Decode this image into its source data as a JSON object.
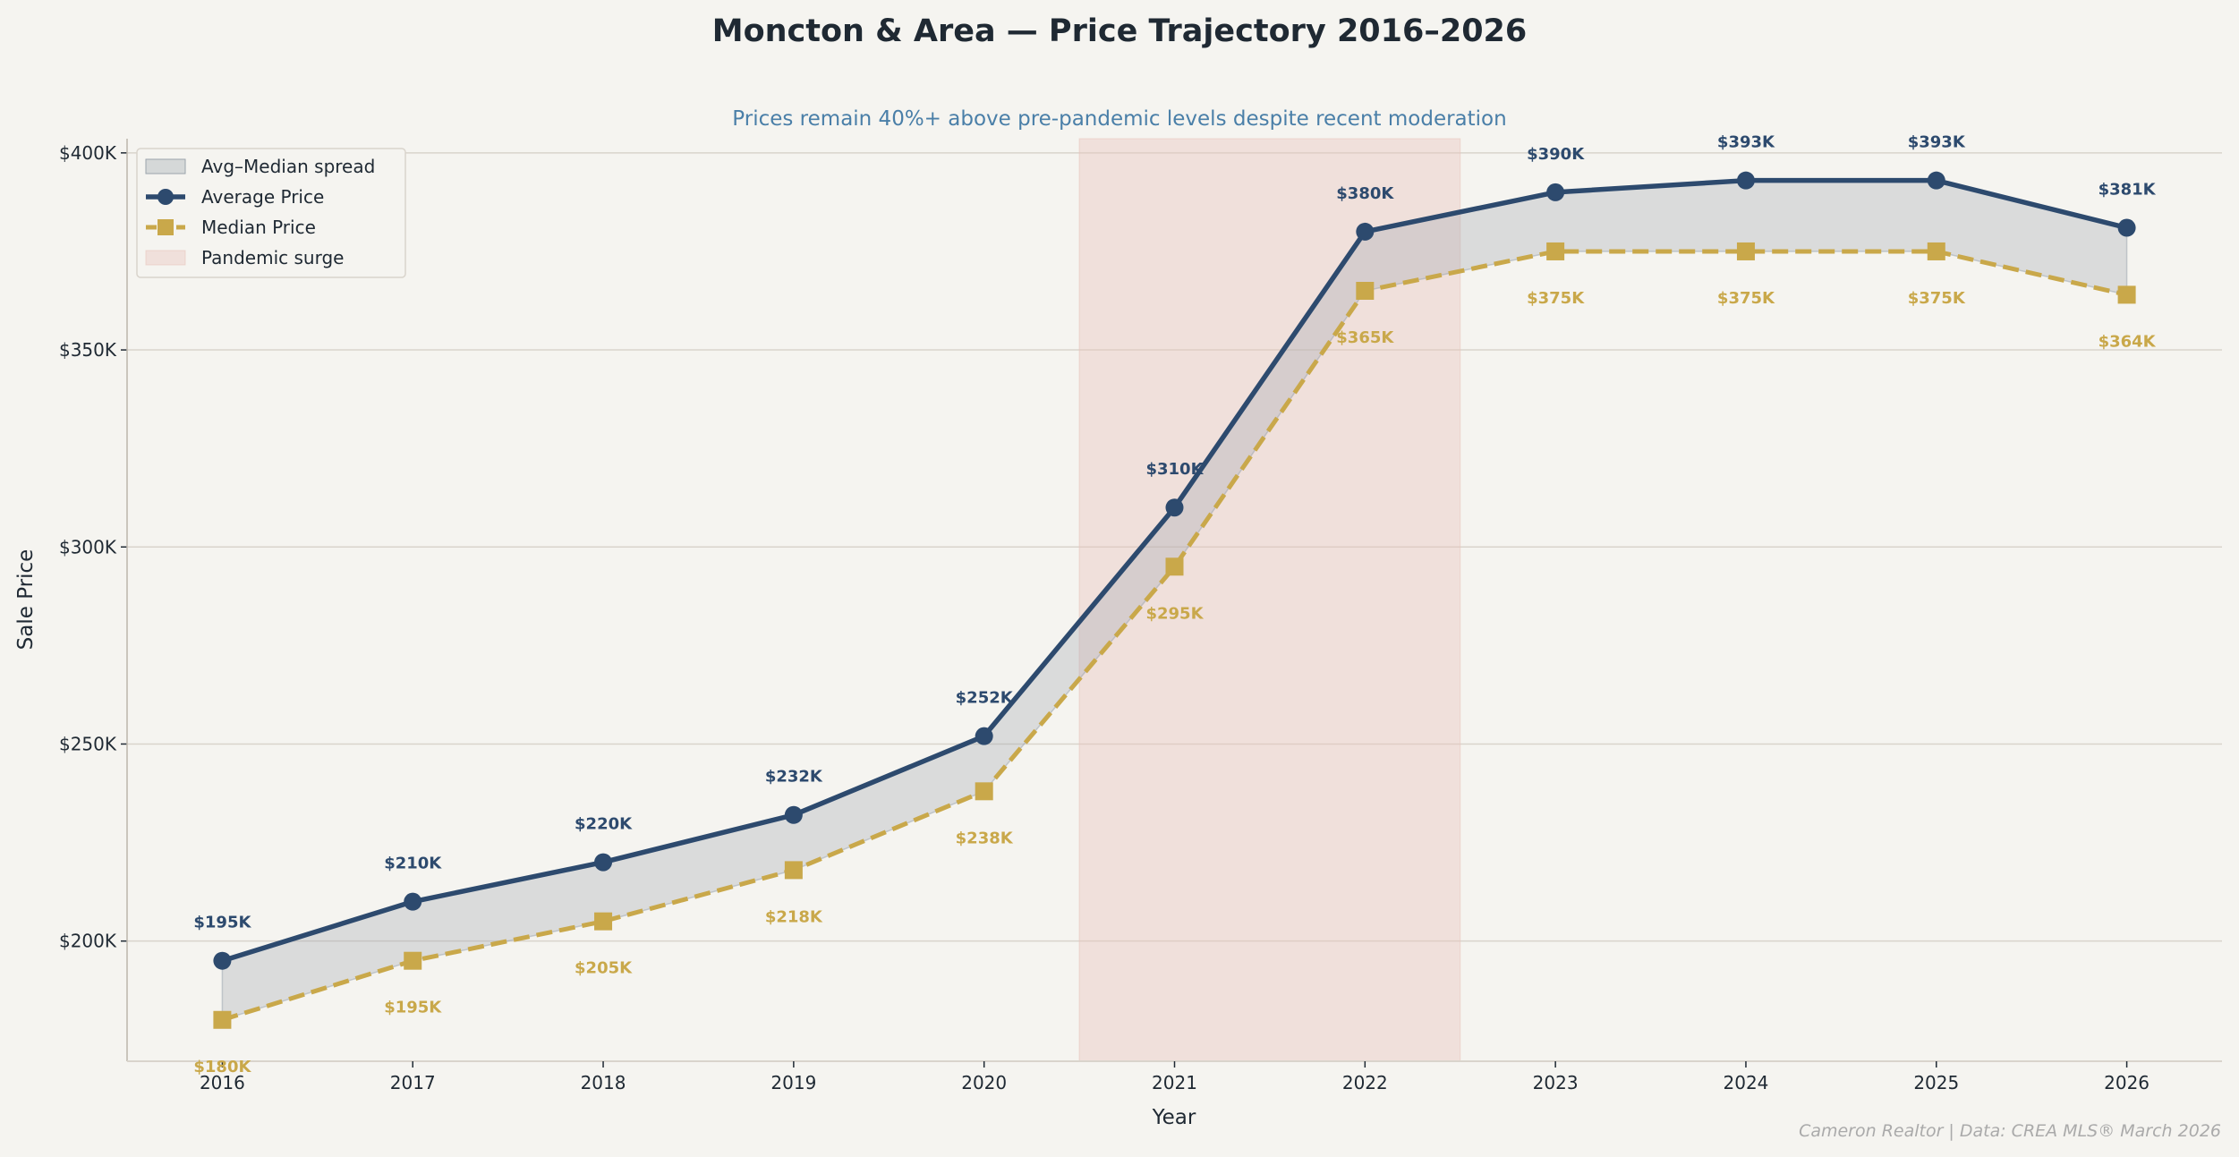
{
  "chart_data": {
    "type": "line",
    "title": "Moncton & Area — Price Trajectory  2016–2026",
    "subtitle": "Prices remain 40%+ above pre-pandemic levels despite recent moderation",
    "xlabel": "Year",
    "ylabel": "Sale Price",
    "footer": "Cameron Realtor  |  Data: CREA MLS® March 2026",
    "x": [
      2016,
      2017,
      2018,
      2019,
      2020,
      2021,
      2022,
      2023,
      2024,
      2025,
      2026
    ],
    "xlim": [
      2015.5,
      2026.5
    ],
    "ylim": [
      169500,
      403600
    ],
    "yticks": [
      200000,
      250000,
      300000,
      350000,
      400000
    ],
    "ytick_labels": [
      "$200K",
      "$250K",
      "$300K",
      "$350K",
      "$400K"
    ],
    "grid": "horizontal",
    "legend_position": "top-left",
    "series": [
      {
        "name": "Average Price",
        "color": "#2d4a6e",
        "style": "solid",
        "marker": "circle",
        "values": [
          195000,
          210000,
          220000,
          232000,
          252000,
          310000,
          380000,
          390000,
          393000,
          393000,
          381000
        ],
        "labels": [
          "$195K",
          "$210K",
          "$220K",
          "$232K",
          "$252K",
          "$310K",
          "$380K",
          "$390K",
          "$393K",
          "$393K",
          "$381K"
        ]
      },
      {
        "name": "Median Price",
        "color": "#c9a84a",
        "style": "dashed",
        "marker": "square",
        "values": [
          180000,
          195000,
          205000,
          218000,
          238000,
          295000,
          365000,
          375000,
          375000,
          375000,
          364000
        ],
        "labels": [
          "$180K",
          "$195K",
          "$205K",
          "$218K",
          "$238K",
          "$295K",
          "$365K",
          "$375K",
          "$375K",
          "$375K",
          "$364K"
        ]
      }
    ],
    "spread": {
      "name": "Avg–Median spread",
      "color": "#9aa3ad"
    },
    "shaded_region": {
      "name": "Pandemic surge",
      "x_start": 2020.5,
      "x_end": 2022.5,
      "color": "#e8c4bc"
    }
  }
}
